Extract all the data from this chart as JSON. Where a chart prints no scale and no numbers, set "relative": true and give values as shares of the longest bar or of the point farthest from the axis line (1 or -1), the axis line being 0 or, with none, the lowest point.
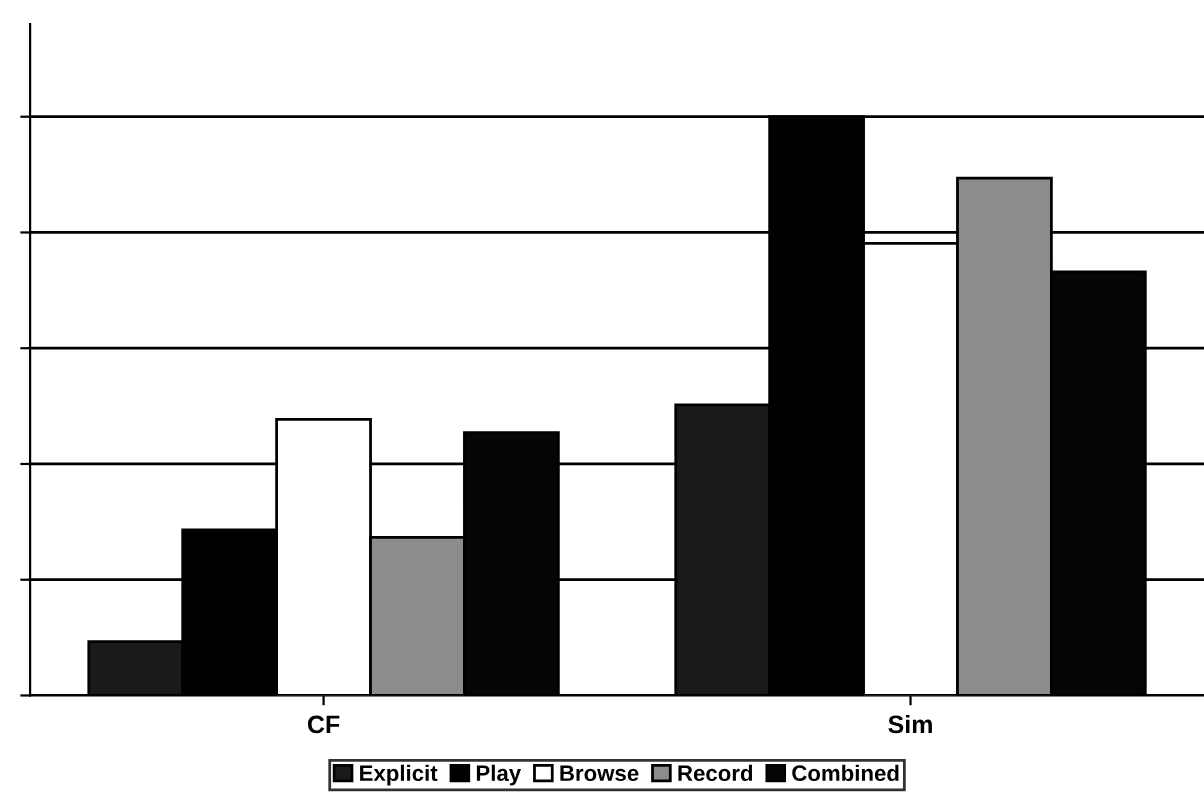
{
  "chart_data": {
    "type": "bar",
    "relative": true,
    "categories": [
      "CF",
      "Sim"
    ],
    "series": [
      {
        "name": "Explicit",
        "color": "#1a1a1a",
        "values": [
          0.093,
          0.502
        ]
      },
      {
        "name": "Play",
        "color": "#000000",
        "values": [
          0.286,
          1
        ]
      },
      {
        "name": "Browse",
        "color": "#ffffff",
        "values": [
          0.477,
          0.781
        ]
      },
      {
        "name": "Record",
        "color": "#8c8c8c",
        "values": [
          0.273,
          0.894
        ]
      },
      {
        "name": "Combined",
        "color": "#050505",
        "values": [
          0.454,
          0.732
        ]
      }
    ],
    "grid": "y",
    "legend": "bottom"
  }
}
